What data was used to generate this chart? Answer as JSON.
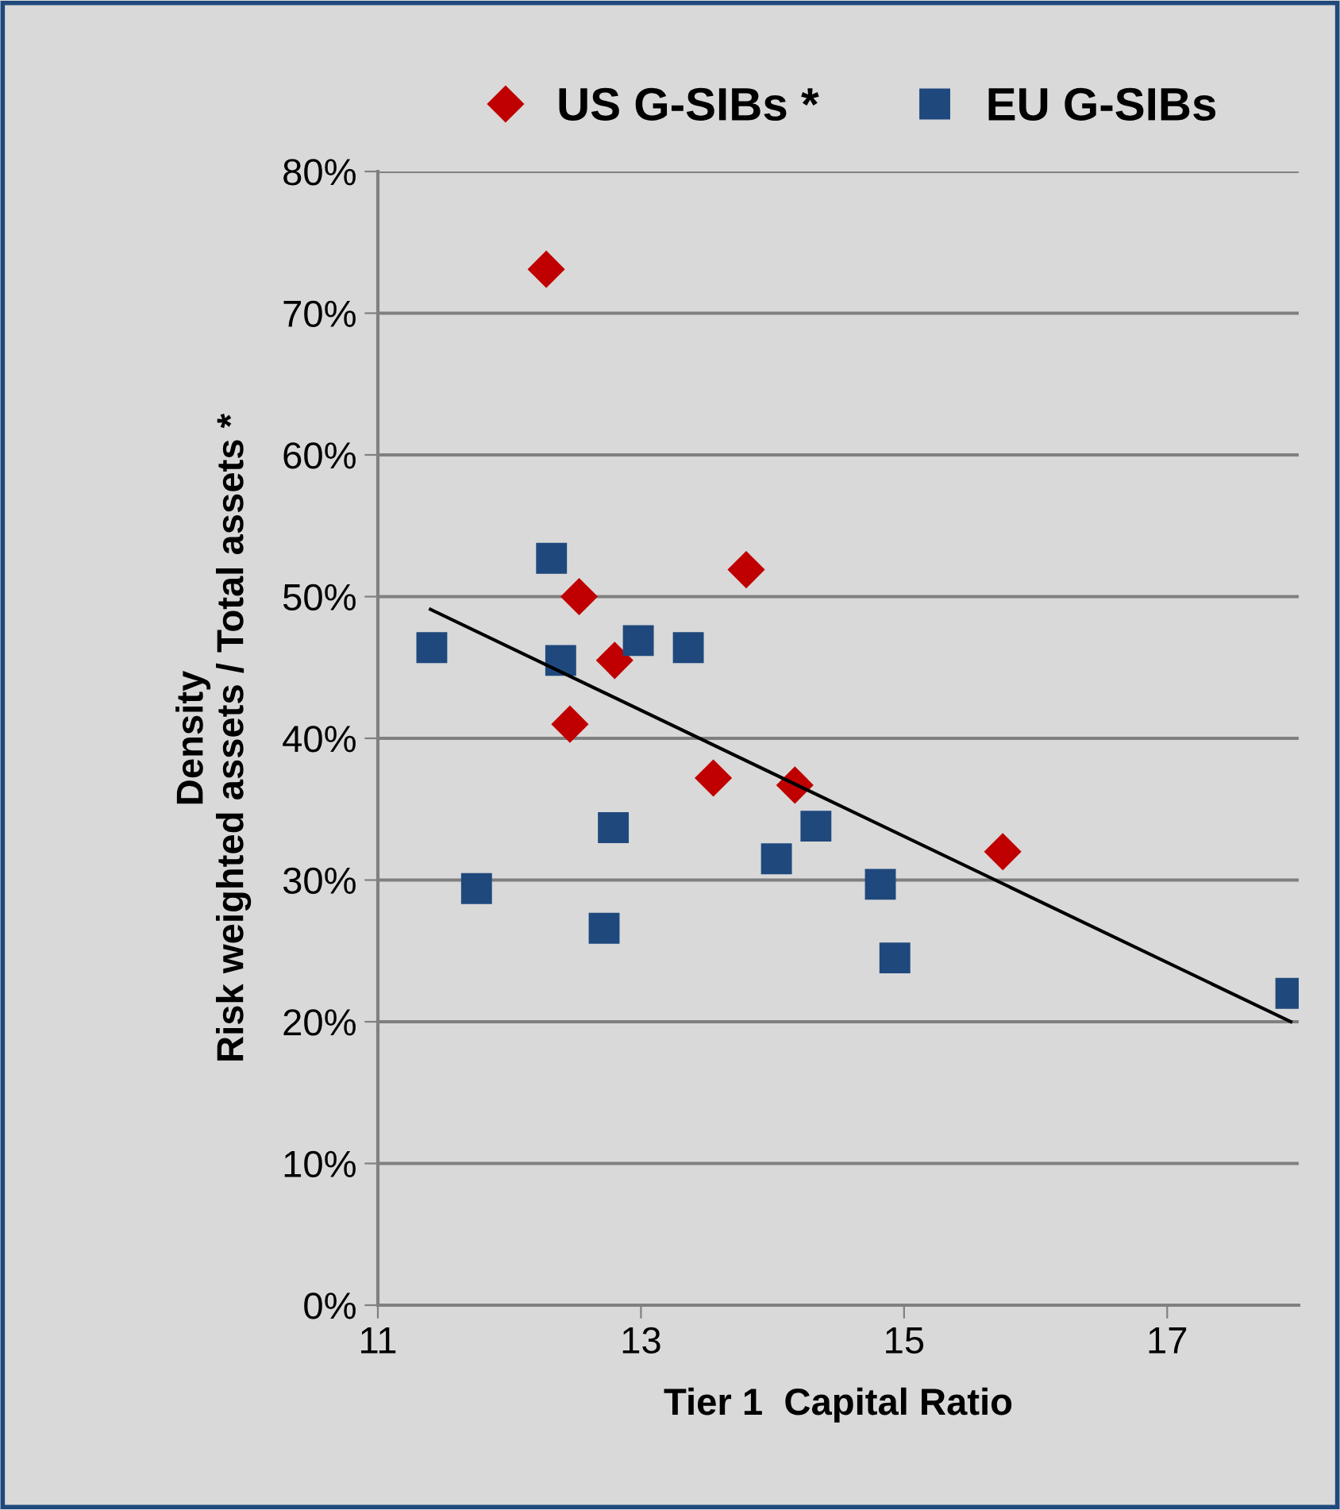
{
  "chart_data": {
    "type": "scatter",
    "xlabel": "Tier 1  Capital Ratio",
    "ylabel": "Density\nRisk weighted assets / Total assets *",
    "xlim": [
      11,
      18
    ],
    "xticks": [
      11,
      13,
      15,
      17
    ],
    "ylim": [
      0,
      80
    ],
    "yticks": [
      {
        "value": 0,
        "label": "0%"
      },
      {
        "value": 10,
        "label": "10%"
      },
      {
        "value": 20,
        "label": "20%"
      },
      {
        "value": 30,
        "label": "30%"
      },
      {
        "value": 40,
        "label": "40%"
      },
      {
        "value": 50,
        "label": "50%"
      },
      {
        "value": 60,
        "label": "60%"
      },
      {
        "value": 70,
        "label": "70%"
      },
      {
        "value": 80,
        "label": "80%"
      }
    ],
    "grid": "y",
    "legend": "top",
    "series": [
      {
        "name": "US G-SIBs *",
        "color": "#c00000",
        "marker": "diamond",
        "x": [
          12.28,
          12.53,
          13.8,
          12.8,
          12.46,
          13.55,
          14.17,
          15.75
        ],
        "values": [
          73.1,
          50.0,
          51.9,
          45.5,
          41.0,
          37.2,
          36.7,
          32.0
        ]
      },
      {
        "name": "EU G-SIBs",
        "color": "#1f497d",
        "marker": "square",
        "x": [
          11.41,
          12.32,
          12.39,
          12.98,
          13.36,
          11.75,
          12.79,
          12.72,
          14.03,
          14.33,
          14.82,
          14.93,
          17.94
        ],
        "values": [
          46.4,
          52.7,
          45.5,
          46.9,
          46.4,
          29.4,
          33.7,
          26.6,
          31.5,
          33.8,
          29.7,
          24.5,
          22.0
        ]
      },
      {
        "type": "line",
        "color": "#000000",
        "marker": "none",
        "x": [
          11.4,
          17.94
        ],
        "values": [
          49.1,
          20.0
        ]
      }
    ]
  }
}
